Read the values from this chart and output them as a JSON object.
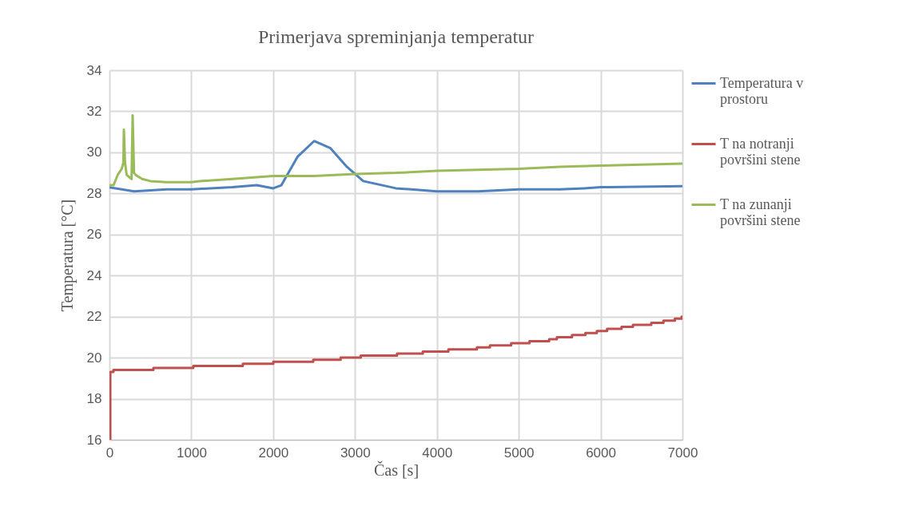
{
  "chart_data": {
    "type": "line",
    "title": "Primerjava spreminjanja temperatur",
    "xlabel": "Čas [s]",
    "ylabel": "Temperatura [°C]",
    "xlim": [
      0,
      7000
    ],
    "xticks": [
      0,
      1000,
      2000,
      3000,
      4000,
      5000,
      6000,
      7000
    ],
    "ylim": [
      16,
      34
    ],
    "yticks": [
      16,
      18,
      20,
      22,
      24,
      26,
      28,
      30,
      32,
      34
    ],
    "grid": true,
    "legend": "right",
    "series": [
      {
        "name": "Temperatura v prostoru",
        "color": "#4f81bd",
        "x": [
          0,
          300,
          700,
          1000,
          1500,
          1800,
          2000,
          2100,
          2300,
          2500,
          2700,
          2900,
          3100,
          3500,
          4000,
          4500,
          5000,
          5500,
          5800,
          6000,
          7000
        ],
        "values": [
          28.3,
          28.1,
          28.2,
          28.2,
          28.3,
          28.4,
          28.25,
          28.4,
          29.8,
          30.55,
          30.2,
          29.3,
          28.6,
          28.25,
          28.1,
          28.1,
          28.2,
          28.2,
          28.25,
          28.3,
          28.35
        ]
      },
      {
        "name": "T na notranji površini stene",
        "color": "#c0504d",
        "type": "step",
        "x": [
          0,
          10,
          48,
          536,
          1024,
          1629,
          2001,
          2489,
          2824,
          3070,
          3513,
          3828,
          4140,
          4489,
          4648,
          4907,
          5131,
          5371,
          5466,
          5651,
          5814,
          5954,
          6079,
          6256,
          6395,
          6619,
          6768,
          6907,
          6990,
          7000
        ],
        "values": [
          16,
          19.3,
          19.4,
          19.5,
          19.6,
          19.7,
          19.8,
          19.9,
          20.0,
          20.1,
          20.2,
          20.3,
          20.4,
          20.5,
          20.6,
          20.7,
          20.8,
          20.9,
          21.0,
          21.1,
          21.2,
          21.3,
          21.4,
          21.5,
          21.6,
          21.7,
          21.8,
          21.9,
          22.0,
          22.0
        ]
      },
      {
        "name": "T na zunanji površini stene",
        "color": "#9bbb59",
        "x": [
          0,
          50,
          100,
          150,
          170,
          176,
          190,
          210,
          240,
          270,
          283,
          300,
          320,
          400,
          500,
          700,
          1000,
          1100,
          1500,
          2000,
          2500,
          3000,
          3500,
          4000,
          4500,
          5000,
          5500,
          6000,
          6500,
          7000
        ],
        "values": [
          28.4,
          28.4,
          28.9,
          29.2,
          29.5,
          31.1,
          29.5,
          28.9,
          28.8,
          28.7,
          31.8,
          29.0,
          28.9,
          28.7,
          28.6,
          28.55,
          28.55,
          28.6,
          28.7,
          28.85,
          28.85,
          28.95,
          29.0,
          29.1,
          29.15,
          29.2,
          29.3,
          29.35,
          29.4,
          29.45
        ]
      }
    ]
  }
}
